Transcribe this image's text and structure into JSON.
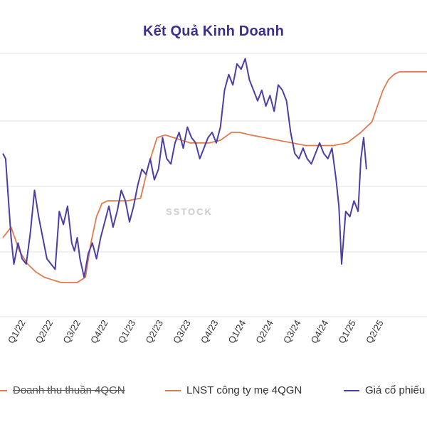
{
  "chart_data": {
    "type": "line",
    "title": "Kết Quả Kinh Doanh",
    "watermark": "SSTOCK",
    "x_range": [
      0,
      15.4
    ],
    "y_range": [
      0,
      100
    ],
    "grid": true,
    "legend_position": "bottom",
    "x_ticks": [
      {
        "x": 0.0,
        "label": "Q1/22"
      },
      {
        "x": 1.0,
        "label": "Q2/22"
      },
      {
        "x": 2.0,
        "label": "Q3/22"
      },
      {
        "x": 3.0,
        "label": "Q4/22"
      },
      {
        "x": 4.0,
        "label": "Q1/23"
      },
      {
        "x": 5.0,
        "label": "Q2/23"
      },
      {
        "x": 6.0,
        "label": "Q3/23"
      },
      {
        "x": 7.0,
        "label": "Q4/23"
      },
      {
        "x": 8.0,
        "label": "Q1/24"
      },
      {
        "x": 9.0,
        "label": "Q2/24"
      },
      {
        "x": 10.0,
        "label": "Q3/24"
      },
      {
        "x": 11.0,
        "label": "Q4/24"
      },
      {
        "x": 12.0,
        "label": "Q1/25"
      },
      {
        "x": 13.0,
        "label": "Q2/25"
      }
    ],
    "series": [
      {
        "name": "Doanh thu thuần 4QGN",
        "color": "#e07a4f",
        "hidden": true,
        "x": [],
        "y": []
      },
      {
        "name": "LNST công ty mẹ 4QGN",
        "color": "#e07a4f",
        "x": [
          0.0,
          0.3,
          0.6,
          0.9,
          1.2,
          1.5,
          1.8,
          2.1,
          2.4,
          2.7,
          3.0,
          3.2,
          3.4,
          3.6,
          3.8,
          4.0,
          4.5,
          5.0,
          5.3,
          5.6,
          5.9,
          6.2,
          6.5,
          6.8,
          7.1,
          7.5,
          7.9,
          8.3,
          8.6,
          9.0,
          9.5,
          10.0,
          10.5,
          11.0,
          11.5,
          12.0,
          12.5,
          13.0,
          13.4,
          13.6,
          13.8,
          14.0,
          14.2,
          14.4,
          14.6,
          14.8,
          15.0,
          15.2,
          15.4
        ],
        "y": [
          30,
          34,
          25,
          20,
          17,
          15,
          14,
          13,
          13,
          13,
          15,
          28,
          38,
          43,
          44,
          44,
          44,
          45,
          58,
          68,
          69,
          68,
          67,
          66,
          66,
          66,
          67,
          70,
          70,
          69,
          68,
          67,
          66,
          65,
          65,
          65,
          66,
          70,
          74,
          80,
          86,
          90,
          92,
          93,
          93,
          93,
          93,
          93,
          93
        ]
      },
      {
        "name": "Giá cổ phiếu",
        "color": "#4b3fa6",
        "x": [
          0.0,
          0.1,
          0.2,
          0.3,
          0.4,
          0.55,
          0.7,
          0.85,
          1.0,
          1.15,
          1.3,
          1.45,
          1.6,
          1.75,
          1.9,
          2.05,
          2.2,
          2.35,
          2.5,
          2.6,
          2.7,
          2.8,
          2.95,
          3.1,
          3.25,
          3.4,
          3.55,
          3.7,
          3.85,
          4.0,
          4.15,
          4.3,
          4.45,
          4.6,
          4.75,
          4.9,
          5.05,
          5.2,
          5.35,
          5.5,
          5.65,
          5.8,
          5.95,
          6.1,
          6.25,
          6.4,
          6.55,
          6.7,
          6.85,
          7.0,
          7.15,
          7.3,
          7.45,
          7.6,
          7.75,
          7.9,
          8.05,
          8.2,
          8.35,
          8.5,
          8.65,
          8.8,
          8.95,
          9.1,
          9.25,
          9.4,
          9.55,
          9.7,
          9.85,
          10.0,
          10.15,
          10.3,
          10.45,
          10.6,
          10.75,
          10.9,
          11.05,
          11.2,
          11.35,
          11.5,
          11.65,
          11.8,
          11.95,
          12.1,
          12.2,
          12.3,
          12.45,
          12.6,
          12.75,
          12.9,
          13.0,
          13.1,
          13.2
        ],
        "y": [
          62,
          60,
          45,
          30,
          20,
          28,
          22,
          20,
          32,
          48,
          38,
          30,
          22,
          20,
          18,
          40,
          35,
          42,
          28,
          25,
          30,
          22,
          15,
          24,
          28,
          22,
          30,
          36,
          42,
          34,
          40,
          48,
          44,
          36,
          42,
          50,
          56,
          54,
          60,
          52,
          56,
          68,
          60,
          58,
          66,
          70,
          64,
          72,
          68,
          66,
          60,
          64,
          68,
          70,
          66,
          72,
          86,
          92,
          88,
          96,
          94,
          98,
          90,
          86,
          82,
          86,
          80,
          84,
          78,
          88,
          86,
          82,
          70,
          62,
          60,
          64,
          60,
          58,
          62,
          66,
          62,
          60,
          64,
          52,
          42,
          20,
          40,
          38,
          44,
          40,
          60,
          68,
          56
        ]
      }
    ]
  }
}
